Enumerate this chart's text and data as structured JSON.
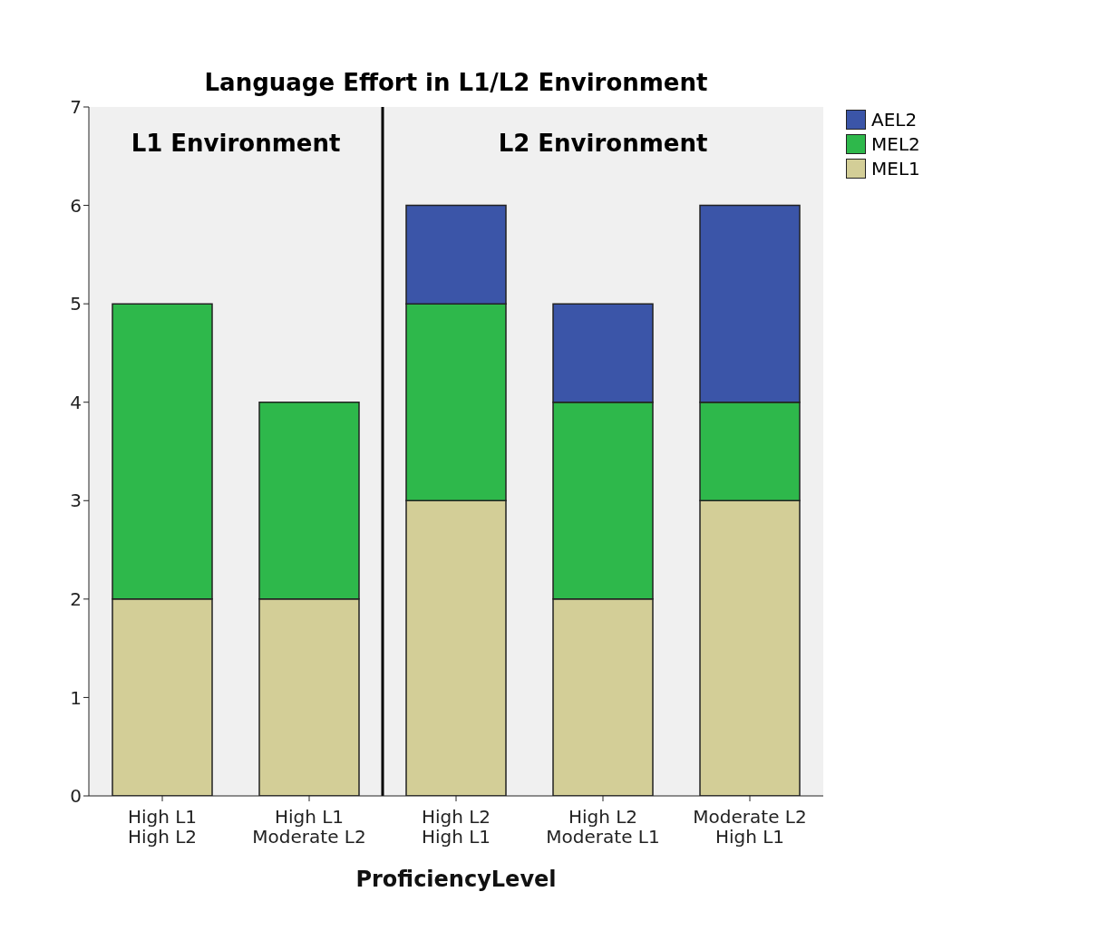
{
  "chart_data": {
    "type": "bar",
    "title": "Language Effort in L1/L2 Environment",
    "xlabel": "ProficiencyLevel",
    "categories": [
      "High L1\nHigh L2",
      "High L1\nModerate L2",
      "High L2\nHigh L1",
      "High L2\nModerate L1",
      "Moderate L2\nHigh L1"
    ],
    "series": [
      {
        "name": "MEL1",
        "color": "#d3ce97",
        "values": [
          2,
          2,
          3,
          2,
          3
        ]
      },
      {
        "name": "MEL2",
        "color": "#2eb84b",
        "values": [
          3,
          2,
          2,
          2,
          1
        ]
      },
      {
        "name": "AEL2",
        "color": "#3b55a8",
        "values": [
          null,
          null,
          1,
          1,
          2
        ]
      }
    ],
    "stacked": true,
    "ylim": [
      0,
      7
    ],
    "yticks": [
      0,
      1,
      2,
      3,
      4,
      5,
      6,
      7
    ],
    "legend": "top right",
    "annotations": [
      "L1 Environment",
      "L2 Environment"
    ]
  }
}
